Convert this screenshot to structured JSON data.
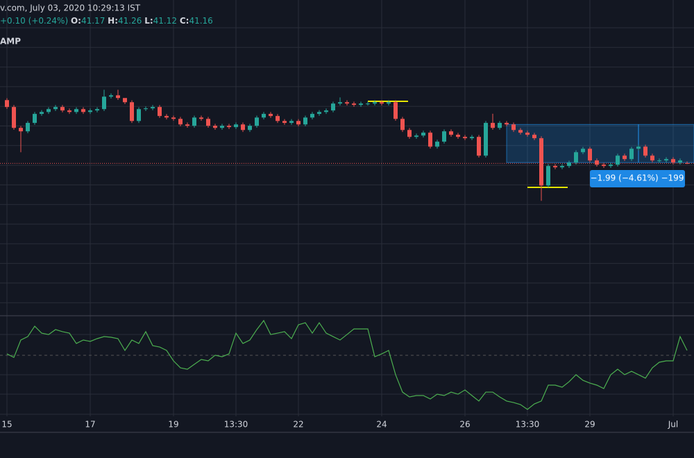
{
  "header": {
    "source": "v.com, July 03, 2020 10:29:13 IST",
    "change": "+0.10 (+0.24%)",
    "ohlc_labels": [
      "O:",
      "H:",
      "L:",
      "C:"
    ],
    "study": "AMP"
  },
  "chart_data": {
    "type": "candlestick",
    "categories": [
      "15",
      null,
      null,
      null,
      null,
      null,
      null,
      null,
      null,
      null,
      null,
      null,
      "17",
      null,
      null,
      null,
      null,
      null,
      null,
      null,
      null,
      null,
      null,
      null,
      "19",
      null,
      null,
      null,
      null,
      null,
      null,
      null,
      null,
      "13:30",
      null,
      null,
      null,
      null,
      null,
      null,
      null,
      null,
      "22",
      null,
      null,
      null,
      null,
      null,
      null,
      null,
      null,
      null,
      null,
      null,
      "24",
      null,
      null,
      null,
      null,
      null,
      null,
      null,
      null,
      null,
      null,
      null,
      "26",
      null,
      null,
      null,
      null,
      null,
      null,
      null,
      null,
      "13:30",
      null,
      null,
      null,
      null,
      null,
      null,
      null,
      null,
      "29",
      null,
      null,
      null,
      null,
      null,
      null,
      null,
      null,
      null,
      null,
      null,
      "Jul",
      null,
      null
    ],
    "open": [
      44.46,
      44.1,
      43.01,
      42.83,
      43.27,
      43.74,
      43.84,
      43.99,
      44.1,
      43.92,
      43.84,
      43.99,
      43.84,
      43.92,
      43.99,
      44.64,
      44.71,
      44.57,
      44.35,
      43.37,
      43.99,
      44.03,
      44.1,
      43.63,
      43.55,
      43.48,
      43.19,
      43.12,
      43.55,
      43.48,
      43.12,
      43.01,
      43.12,
      43.05,
      43.19,
      42.9,
      43.12,
      43.55,
      43.74,
      43.63,
      43.37,
      43.27,
      43.37,
      43.19,
      43.55,
      43.74,
      43.84,
      43.92,
      44.28,
      44.35,
      44.28,
      44.21,
      44.28,
      44.28,
      44.35,
      44.28,
      44.35,
      43.48,
      42.9,
      42.54,
      42.61,
      42.76,
      42.03,
      42.29,
      42.83,
      42.65,
      42.54,
      42.47,
      42.54,
      41.56,
      43.27,
      43.01,
      43.27,
      43.19,
      42.9,
      42.76,
      42.65,
      42.47,
      40.0,
      41.02,
      40.95,
      41.02,
      41.2,
      41.74,
      41.92,
      41.31,
      41.09,
      41.02,
      41.09,
      41.56,
      41.38,
      41.92,
      42.03,
      41.56,
      41.31,
      41.31,
      41.38,
      41.2,
      41.17
    ],
    "high": [
      44.56,
      44.2,
      43.11,
      43.37,
      43.84,
      43.94,
      44.09,
      44.2,
      44.2,
      44.02,
      44.09,
      44.09,
      44.02,
      44.09,
      45.0,
      44.81,
      45.0,
      44.45,
      44.45,
      44.09,
      44.13,
      44.2,
      44.2,
      43.73,
      43.65,
      43.58,
      43.29,
      43.65,
      43.65,
      43.58,
      43.22,
      43.22,
      43.22,
      43.29,
      43.29,
      43.22,
      43.65,
      43.84,
      43.84,
      43.73,
      43.47,
      43.47,
      43.47,
      43.65,
      43.84,
      43.94,
      44.02,
      44.38,
      44.6,
      44.45,
      44.38,
      44.38,
      44.38,
      44.45,
      44.45,
      44.45,
      44.45,
      43.58,
      43.0,
      42.71,
      42.86,
      42.86,
      42.39,
      42.93,
      42.93,
      42.75,
      42.64,
      42.64,
      42.64,
      43.37,
      43.75,
      43.37,
      43.37,
      43.29,
      43.0,
      42.86,
      42.75,
      42.57,
      41.12,
      41.12,
      41.12,
      41.3,
      41.84,
      42.02,
      42.02,
      41.41,
      41.19,
      41.19,
      41.66,
      41.66,
      42.02,
      42.13,
      42.13,
      41.66,
      41.41,
      41.48,
      41.48,
      41.41,
      41.26
    ],
    "low": [
      44.0,
      42.91,
      41.74,
      42.73,
      43.17,
      43.64,
      43.74,
      43.89,
      43.82,
      43.74,
      43.74,
      43.74,
      43.74,
      43.82,
      43.89,
      44.54,
      44.47,
      44.25,
      43.27,
      43.27,
      43.89,
      43.93,
      43.53,
      43.45,
      43.38,
      43.09,
      43.02,
      43.02,
      43.38,
      43.02,
      42.91,
      42.91,
      42.95,
      42.95,
      42.8,
      42.8,
      43.02,
      43.45,
      43.53,
      43.27,
      43.17,
      43.17,
      43.09,
      43.09,
      43.45,
      43.64,
      43.74,
      43.82,
      44.18,
      44.18,
      44.11,
      44.11,
      44.18,
      44.18,
      44.18,
      44.18,
      43.38,
      42.8,
      42.44,
      42.44,
      42.51,
      41.93,
      41.93,
      42.19,
      42.55,
      42.44,
      42.37,
      42.37,
      41.46,
      41.46,
      42.91,
      42.91,
      43.09,
      42.8,
      42.66,
      42.55,
      42.37,
      39.2,
      39.9,
      40.85,
      40.85,
      40.92,
      41.1,
      41.64,
      41.21,
      40.99,
      40.92,
      40.92,
      40.99,
      41.28,
      41.28,
      41.82,
      41.46,
      41.21,
      41.21,
      41.21,
      41.1,
      41.1,
      41.12
    ],
    "close": [
      44.1,
      43.01,
      42.83,
      43.27,
      43.74,
      43.84,
      43.99,
      44.1,
      43.92,
      43.84,
      43.99,
      43.84,
      43.92,
      43.99,
      44.64,
      44.71,
      44.57,
      44.35,
      43.37,
      43.99,
      44.03,
      44.1,
      43.63,
      43.55,
      43.48,
      43.19,
      43.12,
      43.55,
      43.48,
      43.12,
      43.01,
      43.12,
      43.05,
      43.19,
      42.9,
      43.12,
      43.55,
      43.74,
      43.63,
      43.37,
      43.27,
      43.37,
      43.19,
      43.55,
      43.74,
      43.84,
      43.92,
      44.28,
      44.35,
      44.28,
      44.21,
      44.28,
      44.28,
      44.35,
      44.28,
      44.35,
      43.48,
      42.9,
      42.54,
      42.61,
      42.76,
      42.03,
      42.29,
      42.83,
      42.65,
      42.54,
      42.47,
      42.54,
      41.56,
      43.27,
      43.01,
      43.27,
      43.19,
      42.9,
      42.76,
      42.65,
      42.47,
      40.0,
      41.02,
      40.95,
      41.02,
      41.2,
      41.74,
      41.92,
      41.31,
      41.09,
      41.02,
      41.09,
      41.56,
      41.38,
      41.92,
      42.03,
      41.56,
      41.31,
      41.31,
      41.38,
      41.2,
      41.31,
      41.16
    ],
    "up_color": "#26a69a",
    "down_color": "#ef5350",
    "ylim": [
      33.2,
      48.6
    ],
    "measure": {
      "label": "−1.99 (−4.61%) −199",
      "range": [
        43.19,
        41.2
      ],
      "color": "#2196f3"
    },
    "indicator": {
      "color": "#4caf50",
      "ylim": [
        0,
        100
      ],
      "values": [
        66.7,
        63.6,
        78.8,
        81.8,
        90.9,
        84.8,
        83.6,
        87.9,
        86.1,
        84.8,
        75.8,
        78.8,
        77.6,
        80.0,
        81.8,
        81.2,
        80.0,
        69.7,
        78.8,
        75.8,
        86.1,
        73.9,
        72.7,
        69.7,
        60.6,
        54.5,
        53.3,
        57.6,
        61.8,
        60.6,
        65.5,
        64.2,
        66.7,
        84.8,
        75.8,
        78.8,
        87.9,
        95.8,
        83.6,
        84.8,
        86.1,
        80.0,
        92.1,
        93.9,
        84.8,
        93.9,
        84.8,
        81.8,
        78.8,
        83.6,
        88.5,
        88.5,
        88.5,
        64.2,
        66.7,
        69.7,
        48.5,
        33.3,
        29.1,
        30.3,
        30.3,
        27.3,
        31.5,
        30.3,
        33.3,
        31.5,
        35.2,
        30.3,
        25.5,
        33.3,
        33.3,
        29.1,
        25.5,
        24.2,
        22.4,
        18.2,
        23.0,
        25.5,
        39.4,
        39.4,
        37.6,
        42.4,
        48.5,
        43.6,
        41.2,
        39.4,
        36.4,
        48.5,
        53.3,
        48.5,
        51.5,
        48.5,
        45.5,
        54.5,
        59.4,
        60.6,
        60.6,
        81.8,
        69.7
      ]
    },
    "grid": true
  }
}
